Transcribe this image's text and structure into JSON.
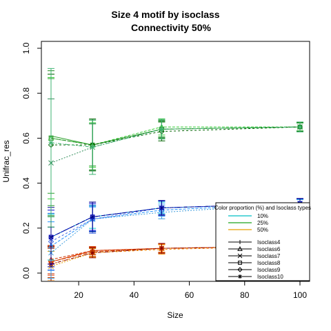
{
  "chart_data": {
    "type": "line",
    "title": "Size 4 motif by isoclass",
    "subtitle": "Connectivity 50%",
    "xlabel": "Size",
    "ylabel": "Unifrac_res",
    "xlim": [
      7,
      105
    ],
    "ylim": [
      0,
      1
    ],
    "x_ticks": [
      20,
      40,
      60,
      80,
      100
    ],
    "y_ticks": [
      0.0,
      0.2,
      0.4,
      0.6,
      0.8,
      1.0
    ],
    "grid": false,
    "legend_position": "bottom-right",
    "legend": {
      "title": "Color proportion (%) and Isoclass types",
      "colors": [
        {
          "label": "10%",
          "color": "#00BFC4"
        },
        {
          "label": "25%",
          "color": "#1CA31C"
        },
        {
          "label": "50%",
          "color": "#E69F00"
        }
      ],
      "shapes": [
        {
          "label": "Isoclass4",
          "marker": "plus"
        },
        {
          "label": "Isoclass6",
          "marker": "triangle"
        },
        {
          "label": "Isoclass7",
          "marker": "x"
        },
        {
          "label": "Isoclass8",
          "marker": "square"
        },
        {
          "label": "Isoclass9",
          "marker": "diamond"
        },
        {
          "label": "Isoclass10",
          "marker": "asterisk"
        }
      ]
    },
    "x": [
      10,
      25,
      50,
      100
    ],
    "groups": [
      {
        "level": "low",
        "series": [
          {
            "color": "#E63A00",
            "marker": "plus",
            "values": [
              0.05,
              0.1,
              0.11,
              0.12
            ]
          },
          {
            "color": "#CC3300",
            "marker": "triangle",
            "values": [
              0.06,
              0.1,
              0.11,
              0.12
            ]
          },
          {
            "color": "#E6A000",
            "marker": "x",
            "values": [
              0.03,
              0.09,
              0.11,
              0.12
            ]
          },
          {
            "color": "#D04000",
            "marker": "square",
            "values": [
              0.05,
              0.095,
              0.11,
              0.12
            ]
          },
          {
            "color": "#FF8C00",
            "marker": "diamond",
            "values": [
              0.04,
              0.09,
              0.105,
              0.12
            ]
          },
          {
            "color": "#8B0000",
            "marker": "asterisk",
            "values": [
              0.04,
              0.09,
              0.11,
              0.12
            ]
          }
        ],
        "error": [
          0.07,
          0.02,
          0.02,
          0.015
        ]
      },
      {
        "level": "mid",
        "series": [
          {
            "color": "#00CED1",
            "marker": "plus",
            "values": [
              0.16,
              0.25,
              0.29,
              0.31
            ]
          },
          {
            "color": "#1E90FF",
            "marker": "triangle",
            "values": [
              0.12,
              0.24,
              0.28,
              0.31
            ]
          },
          {
            "color": "#3A9BDC",
            "marker": "x",
            "values": [
              0.09,
              0.24,
              0.27,
              0.31
            ]
          },
          {
            "color": "#0000CD",
            "marker": "square",
            "values": [
              0.16,
              0.25,
              0.29,
              0.31
            ]
          },
          {
            "color": "#4169E1",
            "marker": "diamond",
            "values": [
              0.14,
              0.24,
              0.29,
              0.31
            ]
          },
          {
            "color": "#00008B",
            "marker": "asterisk",
            "values": [
              0.16,
              0.25,
              0.29,
              0.31
            ]
          }
        ],
        "error": [
          0.12,
          0.06,
          0.03,
          0.02
        ]
      },
      {
        "level": "high",
        "series": [
          {
            "color": "#2CA02C",
            "marker": "plus",
            "values": [
              0.61,
              0.57,
              0.64,
              0.65
            ]
          },
          {
            "color": "#32CD32",
            "marker": "triangle",
            "values": [
              0.6,
              0.57,
              0.65,
              0.65
            ]
          },
          {
            "color": "#2E8B57",
            "marker": "x",
            "values": [
              0.49,
              0.56,
              0.64,
              0.65
            ]
          },
          {
            "color": "#228B22",
            "marker": "square",
            "values": [
              0.6,
              0.57,
              0.64,
              0.65
            ]
          },
          {
            "color": "#006400",
            "marker": "diamond",
            "values": [
              0.57,
              0.57,
              0.63,
              0.65
            ]
          },
          {
            "color": "#3CB371",
            "marker": "asterisk",
            "values": [
              0.58,
              0.56,
              0.64,
              0.65
            ]
          }
        ],
        "error": [
          0.3,
          0.11,
          0.04,
          0.02
        ]
      }
    ]
  }
}
